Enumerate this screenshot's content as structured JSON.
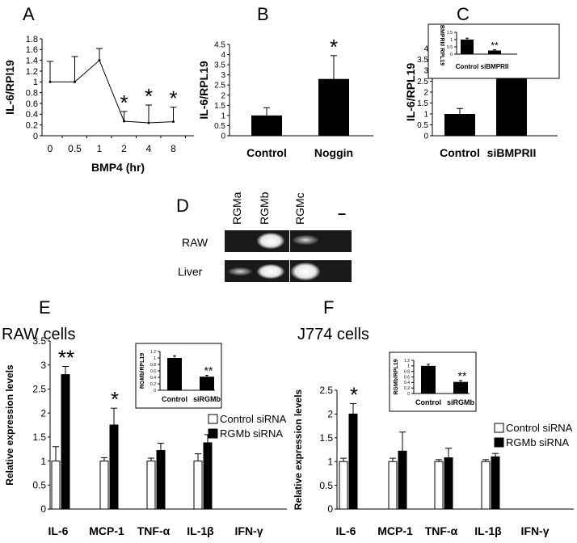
{
  "panels": {
    "a": "A",
    "b": "B",
    "c": "C",
    "d": "D",
    "e": "E",
    "f": "F"
  },
  "gel": {
    "lanes": [
      "RGMa",
      "RGMb",
      "RGMc",
      "–"
    ],
    "rows": [
      "RAW",
      "Liver"
    ]
  },
  "chart_data": [
    {
      "id": "A",
      "type": "line",
      "ylabel": "IL-6/RPl19",
      "xlabel": "BMP4 (hr)",
      "categories": [
        "0",
        "0.5",
        "1",
        "2",
        "4",
        "8"
      ],
      "values": [
        1.0,
        1.0,
        1.4,
        0.27,
        0.24,
        0.26
      ],
      "errors": [
        0.38,
        0.47,
        0.22,
        0.18,
        0.33,
        0.27
      ],
      "markers": [
        "",
        "",
        "",
        "*",
        "*",
        "*"
      ],
      "ylim": [
        0,
        1.8
      ],
      "yticks": [
        "0",
        "0.2",
        "0.4",
        "0.6",
        "0.8",
        "1",
        "1.2",
        "1.4",
        "1.6",
        "1.8"
      ]
    },
    {
      "id": "B",
      "type": "bar",
      "ylabel": "IL-6/RPL19",
      "categories": [
        "Control",
        "Noggin"
      ],
      "values": [
        1.0,
        2.8
      ],
      "errors": [
        0.38,
        1.15
      ],
      "markers": [
        "",
        "*"
      ],
      "ylim": [
        0,
        4.5
      ],
      "yticks": [
        "0",
        "0.5",
        "1",
        "1.5",
        "2",
        "2.5",
        "3",
        "3.5",
        "4",
        "4.5"
      ]
    },
    {
      "id": "C",
      "type": "bar",
      "ylabel": "IL-6/RPL19",
      "categories": [
        "Control",
        "siBMPRII"
      ],
      "values": [
        1.0,
        2.7
      ],
      "errors": [
        0.25,
        0.7
      ],
      "markers": [
        "",
        "**"
      ],
      "ylim": [
        0,
        4
      ],
      "yticks": [
        "0",
        "0.5",
        "1",
        "1.5",
        "2",
        "2.5",
        "3",
        "3.5",
        "4"
      ],
      "inset": {
        "ylabel": "BMPRII/ RPL19",
        "categories": [
          "Control",
          "siBMPRII"
        ],
        "values": [
          1.0,
          0.25
        ],
        "errors": [
          0.1,
          0.05
        ],
        "markers": [
          "",
          "**"
        ],
        "ylim": [
          0,
          1.5
        ],
        "yticks": [
          "0",
          "0.5",
          "1",
          "1.5"
        ]
      }
    },
    {
      "id": "E",
      "type": "bar",
      "title": "RAW cells",
      "ylabel": "Relative expression levels",
      "categories": [
        "IL-6",
        "MCP-1",
        "TNF-α",
        "IL-1β",
        "IFN-γ"
      ],
      "series": [
        {
          "name": "Control siRNA",
          "values": [
            1.0,
            1.0,
            1.0,
            1.0,
            0
          ],
          "errors": [
            0.3,
            0.07,
            0.06,
            0.15,
            0
          ]
        },
        {
          "name": "RGMb siRNA",
          "values": [
            2.8,
            1.75,
            1.22,
            1.38,
            0
          ],
          "errors": [
            0.17,
            0.35,
            0.15,
            0.17,
            0
          ]
        }
      ],
      "markers": [
        "**",
        "*",
        "",
        "",
        ""
      ],
      "ylim": [
        0,
        3.5
      ],
      "yticks": [
        "0",
        "0.5",
        "1",
        "1.5",
        "2",
        "2.5",
        "3",
        "3.5"
      ],
      "legend": "right",
      "inset": {
        "ylabel": "RGMb/RPL19",
        "categories": [
          "Control",
          "siRGMb"
        ],
        "values": [
          1.0,
          0.42
        ],
        "errors": [
          0.07,
          0.04
        ],
        "markers": [
          "",
          "**"
        ],
        "ylim": [
          0,
          1.2
        ],
        "yticks": [
          "0",
          "0.2",
          "0.4",
          "0.6",
          "0.8",
          "1",
          "1.2"
        ]
      }
    },
    {
      "id": "F",
      "type": "bar",
      "title": "J774 cells",
      "ylabel": "Relative expression levels",
      "categories": [
        "IL-6",
        "MCP-1",
        "TNF-α",
        "IL-1β",
        "IFN-γ"
      ],
      "series": [
        {
          "name": "Control siRNA",
          "values": [
            1.0,
            1.0,
            1.0,
            1.0,
            0
          ],
          "errors": [
            0.07,
            0.07,
            0.04,
            0.04,
            0
          ]
        },
        {
          "name": "RGMb siRNA",
          "values": [
            2.0,
            1.22,
            1.08,
            1.1,
            0
          ],
          "errors": [
            0.22,
            0.4,
            0.2,
            0.07,
            0
          ]
        }
      ],
      "markers": [
        "*",
        "",
        "",
        "",
        ""
      ],
      "ylim": [
        0,
        2.5
      ],
      "yticks": [
        "0",
        "0.5",
        "1",
        "1.5",
        "2",
        "2.5"
      ],
      "legend": "right",
      "inset": {
        "ylabel": "RGMb/RPL19",
        "categories": [
          "Control",
          "siRGMb"
        ],
        "values": [
          1.0,
          0.42
        ],
        "errors": [
          0.06,
          0.05
        ],
        "markers": [
          "",
          "**"
        ],
        "ylim": [
          0,
          1.2
        ],
        "yticks": [
          "0",
          "0.2",
          "0.4",
          "0.6",
          "0.8",
          "1",
          "1.2"
        ]
      }
    }
  ]
}
